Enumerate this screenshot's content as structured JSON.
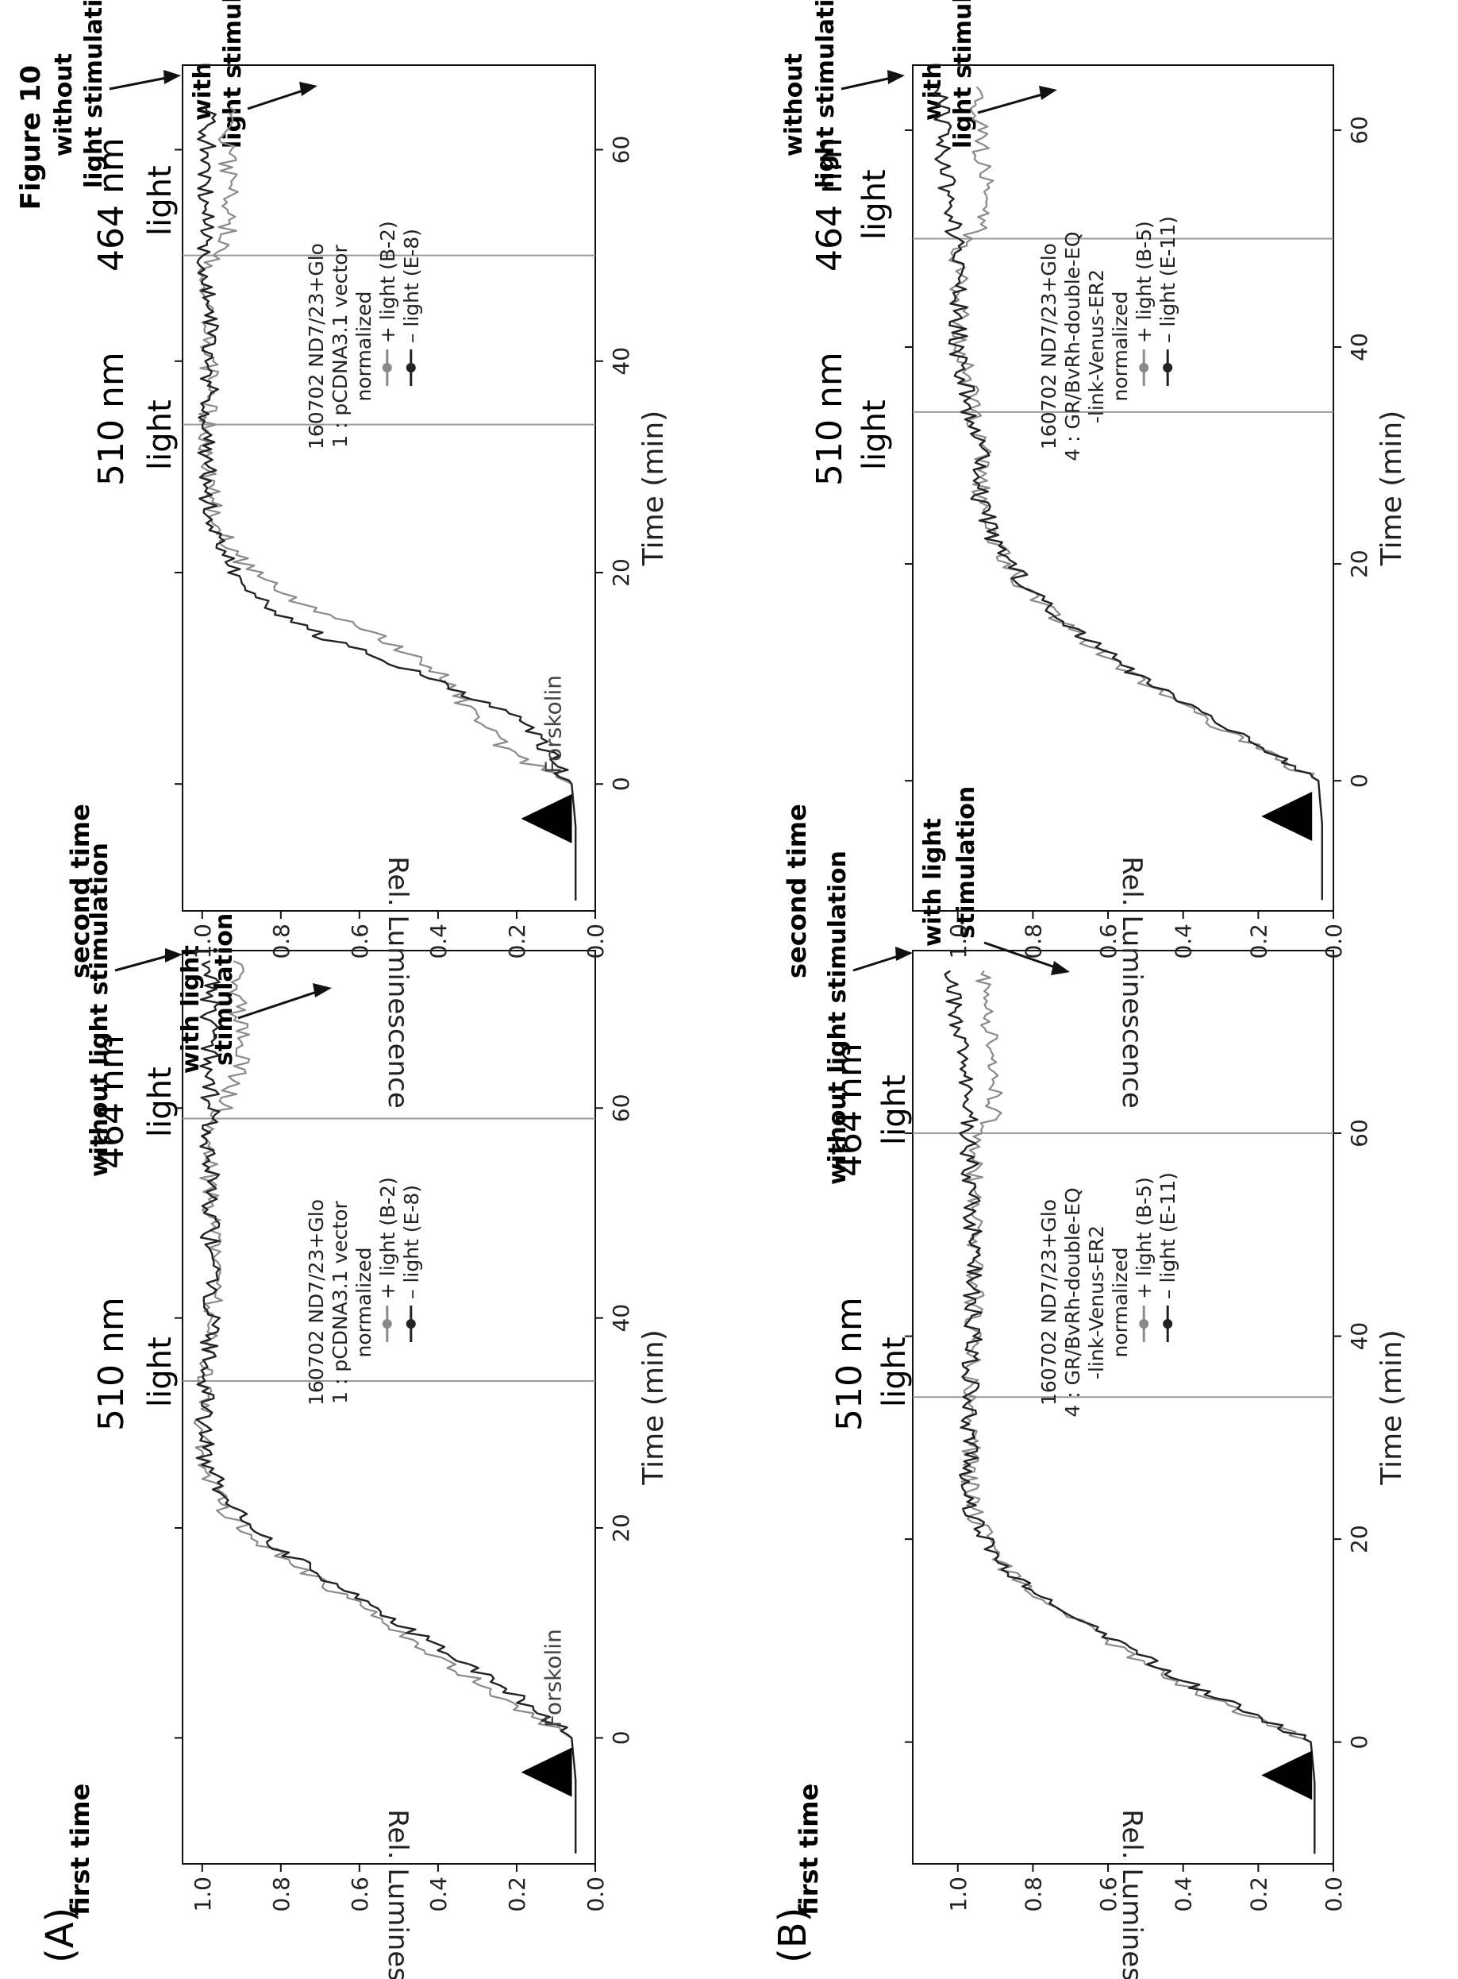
{
  "figure_title": "Figure 10",
  "panel_labels": {
    "A": "(A)",
    "B": "(B)"
  },
  "run_labels": {
    "first": "first time",
    "second": "second time"
  },
  "light_labels": {
    "nm510": "510 nm",
    "nm464": "464 nm",
    "light": "light"
  },
  "annotations": {
    "without_light": "without light stimulation",
    "without_line1": "without",
    "without_line2": "light stimulation",
    "with_light_line1": "with light",
    "with_light_line2": "stimulation",
    "with_line1": "with",
    "with_line2": "light stimulation",
    "forskolin": "Forskolin"
  },
  "chart_data": [
    {
      "id": "A-first",
      "type": "line",
      "xlabel": "Time (min)",
      "ylabel": "Rel. Luminescence",
      "xlim": [
        -12,
        75
      ],
      "ylim": [
        0,
        1.05
      ],
      "xticks": [
        0,
        20,
        40,
        60
      ],
      "yticks": [
        0.0,
        0.2,
        0.4,
        0.6,
        0.8,
        1.0
      ],
      "vlines": [
        34,
        59
      ],
      "forskolin_arrow": true,
      "legend": [
        "160702 ND7/23+Glo",
        "1 : pCDNA3.1 vector",
        "normalized",
        "+ light (B-2)",
        "– light (E-8)"
      ],
      "series": [
        {
          "name": "+ light (B-2)",
          "color": "#8a8a8a",
          "points": [
            [
              -11,
              0.05
            ],
            [
              -4,
              0.05
            ],
            [
              0,
              0.06
            ],
            [
              3,
              0.2
            ],
            [
              6,
              0.33
            ],
            [
              10,
              0.5
            ],
            [
              14,
              0.66
            ],
            [
              18,
              0.83
            ],
            [
              22,
              0.95
            ],
            [
              26,
              0.99
            ],
            [
              30,
              1.0
            ],
            [
              34,
              0.99
            ],
            [
              40,
              0.97
            ],
            [
              50,
              0.98
            ],
            [
              58,
              0.98
            ],
            [
              61,
              0.93
            ],
            [
              65,
              0.9
            ],
            [
              70,
              0.91
            ],
            [
              74,
              0.92
            ]
          ]
        },
        {
          "name": "– light (E-8)",
          "color": "#222222",
          "points": [
            [
              -11,
              0.05
            ],
            [
              -4,
              0.05
            ],
            [
              0,
              0.06
            ],
            [
              3,
              0.16
            ],
            [
              6,
              0.29
            ],
            [
              10,
              0.46
            ],
            [
              14,
              0.63
            ],
            [
              18,
              0.8
            ],
            [
              22,
              0.93
            ],
            [
              26,
              0.99
            ],
            [
              30,
              1.0
            ],
            [
              34,
              0.99
            ],
            [
              40,
              0.98
            ],
            [
              50,
              0.98
            ],
            [
              58,
              0.98
            ],
            [
              61,
              0.98
            ],
            [
              65,
              0.98
            ],
            [
              70,
              0.98
            ],
            [
              74,
              0.98
            ]
          ]
        }
      ]
    },
    {
      "id": "A-second",
      "type": "line",
      "xlabel": "Time (min)",
      "ylabel": "Rel. Luminescence",
      "xlim": [
        -12,
        68
      ],
      "ylim": [
        0,
        1.05
      ],
      "xticks": [
        0,
        20,
        40,
        60
      ],
      "yticks": [
        0.0,
        0.2,
        0.4,
        0.6,
        0.8,
        1.0
      ],
      "vlines": [
        34,
        50
      ],
      "forskolin_arrow": true,
      "legend": [
        "160702 ND7/23+Glo",
        "1 : pCDNA3.1 vector",
        "normalized",
        "+ light (B-2)",
        "– light (E-8)"
      ],
      "series": [
        {
          "name": "+ light (B-2)",
          "color": "#8a8a8a",
          "points": [
            [
              -11,
              0.05
            ],
            [
              -4,
              0.05
            ],
            [
              0,
              0.06
            ],
            [
              3,
              0.22
            ],
            [
              6,
              0.3
            ],
            [
              10,
              0.38
            ],
            [
              14,
              0.55
            ],
            [
              18,
              0.8
            ],
            [
              22,
              0.93
            ],
            [
              26,
              0.97
            ],
            [
              30,
              0.99
            ],
            [
              34,
              0.99
            ],
            [
              40,
              0.98
            ],
            [
              49,
              0.99
            ],
            [
              51,
              0.94
            ],
            [
              56,
              0.93
            ],
            [
              60,
              0.94
            ],
            [
              64,
              0.93
            ]
          ]
        },
        {
          "name": "– light (E-8)",
          "color": "#222222",
          "points": [
            [
              -11,
              0.05
            ],
            [
              -4,
              0.05
            ],
            [
              0,
              0.06
            ],
            [
              3,
              0.12
            ],
            [
              6,
              0.18
            ],
            [
              10,
              0.42
            ],
            [
              14,
              0.7
            ],
            [
              18,
              0.88
            ],
            [
              22,
              0.95
            ],
            [
              26,
              0.98
            ],
            [
              30,
              0.99
            ],
            [
              34,
              0.99
            ],
            [
              40,
              0.98
            ],
            [
              49,
              0.99
            ],
            [
              51,
              0.99
            ],
            [
              56,
              0.99
            ],
            [
              60,
              0.99
            ],
            [
              64,
              0.99
            ]
          ]
        }
      ]
    },
    {
      "id": "B-first",
      "type": "line",
      "xlabel": "Time (min)",
      "ylabel": "Rel. Luminescence",
      "xlim": [
        -12,
        78
      ],
      "ylim": [
        0,
        1.12
      ],
      "xticks": [
        0,
        20,
        40,
        60
      ],
      "yticks": [
        0.0,
        0.2,
        0.4,
        0.6,
        0.8,
        1.0
      ],
      "vlines": [
        34,
        60
      ],
      "forskolin_arrow": true,
      "legend": [
        "160702 ND7/23+Glo",
        "4 : GR/BvRh-double-EQ",
        "-link-Venus-ER2",
        "normalized",
        "+ light (B-5)",
        "– light (E-11)"
      ],
      "series": [
        {
          "name": "+ light (B-5)",
          "color": "#8a8a8a",
          "points": [
            [
              -11,
              0.05
            ],
            [
              -4,
              0.05
            ],
            [
              0,
              0.06
            ],
            [
              3,
              0.25
            ],
            [
              6,
              0.42
            ],
            [
              10,
              0.6
            ],
            [
              14,
              0.78
            ],
            [
              18,
              0.9
            ],
            [
              22,
              0.95
            ],
            [
              26,
              0.97
            ],
            [
              30,
              0.96
            ],
            [
              34,
              0.97
            ],
            [
              40,
              0.96
            ],
            [
              50,
              0.95
            ],
            [
              59,
              0.96
            ],
            [
              62,
              0.9
            ],
            [
              66,
              0.91
            ],
            [
              70,
              0.92
            ],
            [
              76,
              0.93
            ]
          ]
        },
        {
          "name": "– light (E-11)",
          "color": "#222222",
          "points": [
            [
              -11,
              0.05
            ],
            [
              -4,
              0.05
            ],
            [
              0,
              0.06
            ],
            [
              3,
              0.22
            ],
            [
              6,
              0.4
            ],
            [
              10,
              0.58
            ],
            [
              14,
              0.77
            ],
            [
              18,
              0.9
            ],
            [
              22,
              0.96
            ],
            [
              26,
              0.97
            ],
            [
              30,
              0.97
            ],
            [
              34,
              0.97
            ],
            [
              40,
              0.96
            ],
            [
              50,
              0.96
            ],
            [
              59,
              0.97
            ],
            [
              62,
              0.97
            ],
            [
              66,
              0.99
            ],
            [
              70,
              1.0
            ],
            [
              76,
              1.02
            ]
          ]
        }
      ]
    },
    {
      "id": "B-second",
      "type": "line",
      "xlabel": "Time (min)",
      "ylabel": "Rel. Luminescence",
      "xlim": [
        -12,
        66
      ],
      "ylim": [
        0,
        1.12
      ],
      "xticks": [
        0,
        20,
        40,
        60
      ],
      "yticks": [
        0.0,
        0.2,
        0.4,
        0.6,
        0.8,
        1.0
      ],
      "vlines": [
        34,
        50
      ],
      "forskolin_arrow": true,
      "legend": [
        "160702 ND7/23+Glo",
        "4 : GR/BvRh-double-EQ",
        "-link-Venus-ER2",
        "normalized",
        "+ light (B-5)",
        "– light (E-11)"
      ],
      "series": [
        {
          "name": "+ light (B-5)",
          "color": "#8a8a8a",
          "points": [
            [
              -11,
              0.03
            ],
            [
              -4,
              0.03
            ],
            [
              0,
              0.04
            ],
            [
              3,
              0.2
            ],
            [
              6,
              0.36
            ],
            [
              10,
              0.55
            ],
            [
              14,
              0.7
            ],
            [
              18,
              0.83
            ],
            [
              22,
              0.9
            ],
            [
              26,
              0.94
            ],
            [
              30,
              0.93
            ],
            [
              34,
              0.96
            ],
            [
              40,
              0.99
            ],
            [
              49,
              1.0
            ],
            [
              51,
              0.94
            ],
            [
              55,
              0.93
            ],
            [
              60,
              0.94
            ],
            [
              64,
              0.95
            ]
          ]
        },
        {
          "name": "– light (E-11)",
          "color": "#222222",
          "points": [
            [
              -11,
              0.03
            ],
            [
              -4,
              0.03
            ],
            [
              0,
              0.04
            ],
            [
              3,
              0.18
            ],
            [
              6,
              0.34
            ],
            [
              10,
              0.53
            ],
            [
              14,
              0.69
            ],
            [
              18,
              0.82
            ],
            [
              22,
              0.9
            ],
            [
              26,
              0.94
            ],
            [
              30,
              0.94
            ],
            [
              34,
              0.97
            ],
            [
              40,
              1.0
            ],
            [
              49,
              1.0
            ],
            [
              51,
              1.01
            ],
            [
              55,
              1.03
            ],
            [
              60,
              1.04
            ],
            [
              64,
              1.05
            ]
          ]
        }
      ]
    }
  ]
}
